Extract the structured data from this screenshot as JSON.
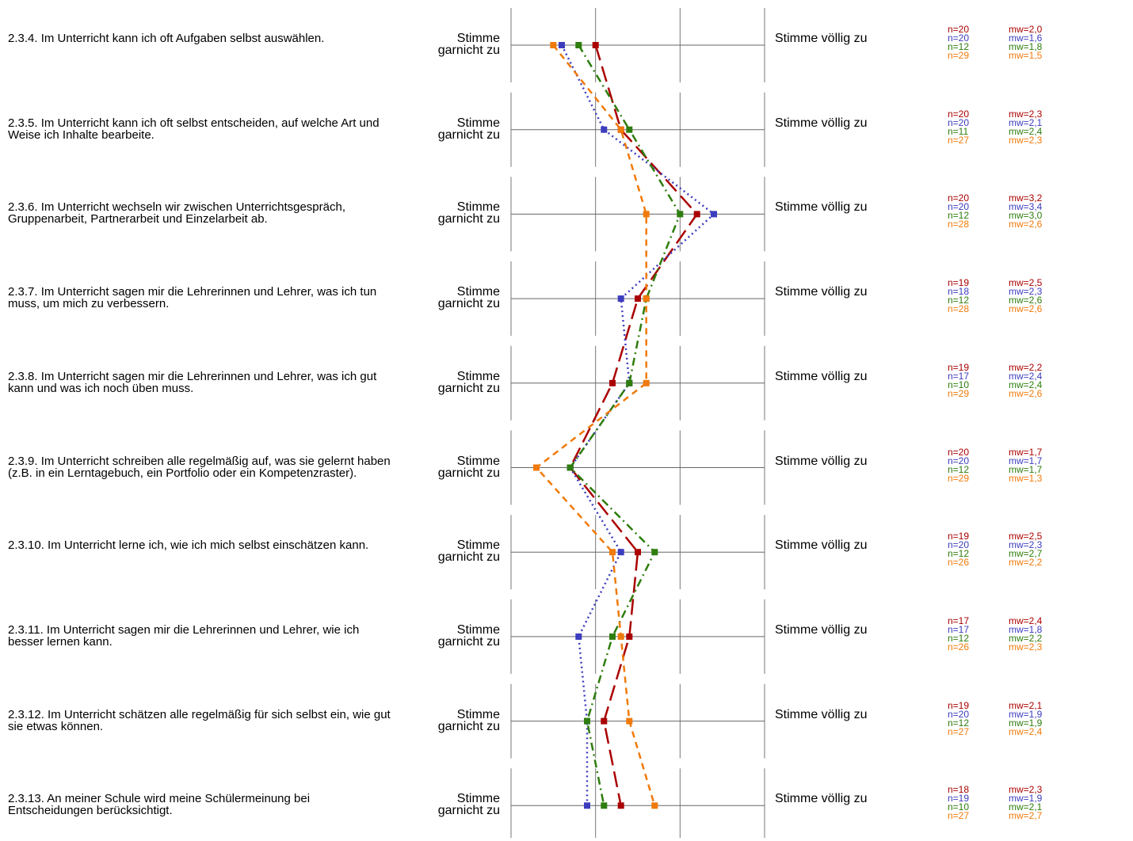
{
  "chart_data": {
    "type": "line",
    "orientation": "vertical-profile",
    "scale_min": 1,
    "scale_max": 4,
    "scale_left_label": "Stimme garnicht zu",
    "scale_right_label": "Stimme völlig zu",
    "series": [
      {
        "color": "#aa0000",
        "dash": "long-dash"
      },
      {
        "color": "#3c3cbe",
        "dash": "dotted"
      },
      {
        "color": "#2e7d0e",
        "dash": "dash-dot"
      },
      {
        "color": "#f07a0a",
        "dash": "dashed"
      }
    ],
    "items": [
      {
        "label": "2.3.4. Im Unterricht kann ich oft Aufgaben selbst auswählen.",
        "stats": [
          {
            "n": "n=20",
            "mw": "mw=2,0"
          },
          {
            "n": "n=20",
            "mw": "mw=1,6"
          },
          {
            "n": "n=12",
            "mw": "mw=1,8"
          },
          {
            "n": "n=29",
            "mw": "mw=1,5"
          }
        ]
      },
      {
        "label": "2.3.5. Im Unterricht kann ich oft selbst entscheiden, auf welche Art und Weise ich Inhalte bearbeite.",
        "stats": [
          {
            "n": "n=20",
            "mw": "mw=2,3"
          },
          {
            "n": "n=20",
            "mw": "mw=2,1"
          },
          {
            "n": "n=11",
            "mw": "mw=2,4"
          },
          {
            "n": "n=27",
            "mw": "mw=2,3"
          }
        ]
      },
      {
        "label": "2.3.6. Im Unterricht wechseln wir zwischen Unterrichtsgespräch, Gruppenarbeit, Partnerarbeit und Einzelarbeit ab.",
        "stats": [
          {
            "n": "n=20",
            "mw": "mw=3,2"
          },
          {
            "n": "n=20",
            "mw": "mw=3,4"
          },
          {
            "n": "n=12",
            "mw": "mw=3,0"
          },
          {
            "n": "n=28",
            "mw": "mw=2,6"
          }
        ]
      },
      {
        "label": "2.3.7. Im Unterricht sagen mir die Lehrerinnen und Lehrer, was ich tun muss, um mich zu verbessern.",
        "stats": [
          {
            "n": "n=19",
            "mw": "mw=2,5"
          },
          {
            "n": "n=18",
            "mw": "mw=2,3"
          },
          {
            "n": "n=12",
            "mw": "mw=2,6"
          },
          {
            "n": "n=28",
            "mw": "mw=2,6"
          }
        ]
      },
      {
        "label": "2.3.8. Im Unterricht sagen mir die Lehrerinnen und Lehrer, was ich gut kann und was ich noch üben muss.",
        "stats": [
          {
            "n": "n=19",
            "mw": "mw=2,2"
          },
          {
            "n": "n=17",
            "mw": "mw=2,4"
          },
          {
            "n": "n=10",
            "mw": "mw=2,4"
          },
          {
            "n": "n=29",
            "mw": "mw=2,6"
          }
        ]
      },
      {
        "label": "2.3.9. Im Unterricht schreiben alle regelmäßig auf, was sie gelernt haben (z.B. in ein Lerntagebuch, ein Portfolio oder ein Kompetenzraster).",
        "stats": [
          {
            "n": "n=20",
            "mw": "mw=1,7"
          },
          {
            "n": "n=20",
            "mw": "mw=1,7"
          },
          {
            "n": "n=12",
            "mw": "mw=1,7"
          },
          {
            "n": "n=29",
            "mw": "mw=1,3"
          }
        ]
      },
      {
        "label": "2.3.10. Im Unterricht lerne ich, wie ich mich selbst einschätzen kann.",
        "stats": [
          {
            "n": "n=19",
            "mw": "mw=2,5"
          },
          {
            "n": "n=20",
            "mw": "mw=2,3"
          },
          {
            "n": "n=12",
            "mw": "mw=2,7"
          },
          {
            "n": "n=26",
            "mw": "mw=2,2"
          }
        ]
      },
      {
        "label": "2.3.11. Im Unterricht sagen mir die Lehrerinnen und Lehrer, wie ich besser lernen kann.",
        "stats": [
          {
            "n": "n=17",
            "mw": "mw=2,4"
          },
          {
            "n": "n=17",
            "mw": "mw=1,8"
          },
          {
            "n": "n=12",
            "mw": "mw=2,2"
          },
          {
            "n": "n=26",
            "mw": "mw=2,3"
          }
        ]
      },
      {
        "label": "2.3.12. Im Unterricht schätzen alle regelmäßig für sich selbst ein, wie gut sie etwas können.",
        "stats": [
          {
            "n": "n=19",
            "mw": "mw=2,1"
          },
          {
            "n": "n=20",
            "mw": "mw=1,9"
          },
          {
            "n": "n=12",
            "mw": "mw=1,9"
          },
          {
            "n": "n=27",
            "mw": "mw=2,4"
          }
        ]
      },
      {
        "label": "2.3.13. An meiner Schule wird meine Schülermeinung bei Entscheidungen berücksichtigt.",
        "stats": [
          {
            "n": "n=18",
            "mw": "mw=2,3"
          },
          {
            "n": "n=19",
            "mw": "mw=1,9"
          },
          {
            "n": "n=10",
            "mw": "mw=2,1"
          },
          {
            "n": "n=27",
            "mw": "mw=2,7"
          }
        ]
      }
    ]
  }
}
